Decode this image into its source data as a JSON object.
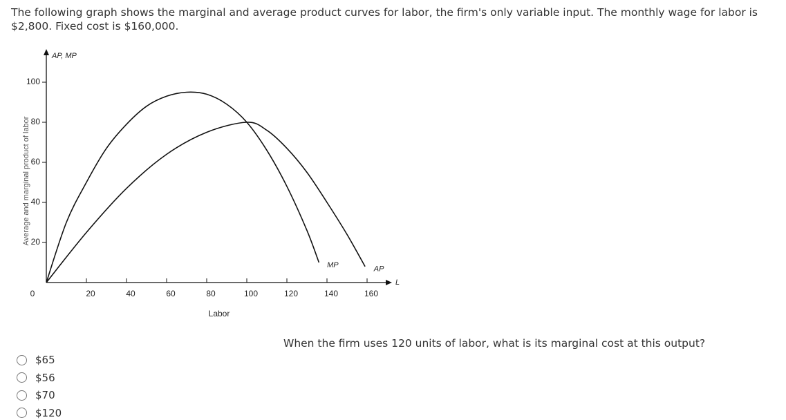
{
  "intro": "The following graph shows the marginal and average product curves for labor, the firm's only variable input. The monthly wage for labor is $2,800. Fixed cost is $160,000.",
  "chart_data": {
    "type": "line",
    "y_axis_title": "AP, MP",
    "ylabel": "Average and marginal product of labor",
    "xlabel": "Labor",
    "x_axis_end_label": "L",
    "xlim": [
      0,
      170
    ],
    "ylim": [
      0,
      110
    ],
    "xticks": [
      0,
      20,
      40,
      60,
      80,
      100,
      120,
      140,
      160
    ],
    "yticks": [
      20,
      40,
      60,
      80,
      100
    ],
    "series": [
      {
        "name": "MP",
        "color": "#111111",
        "x": [
          0,
          10,
          20,
          30,
          40,
          50,
          60,
          70,
          80,
          90,
          100,
          110,
          120,
          130,
          136
        ],
        "values": [
          0,
          30,
          50,
          67,
          79,
          88,
          93,
          95,
          94,
          89,
          80,
          66,
          48,
          26,
          10
        ]
      },
      {
        "name": "AP",
        "color": "#111111",
        "x": [
          0,
          20,
          40,
          60,
          80,
          100,
          110,
          120,
          130,
          140,
          150,
          159
        ],
        "values": [
          0,
          25,
          47,
          64,
          75,
          80,
          76,
          67,
          55,
          40,
          24,
          8
        ]
      }
    ]
  },
  "question": "When the firm uses 120 units of labor, what is its marginal cost at this output?",
  "options": [
    "$65",
    "$56",
    "$70",
    "$120"
  ]
}
